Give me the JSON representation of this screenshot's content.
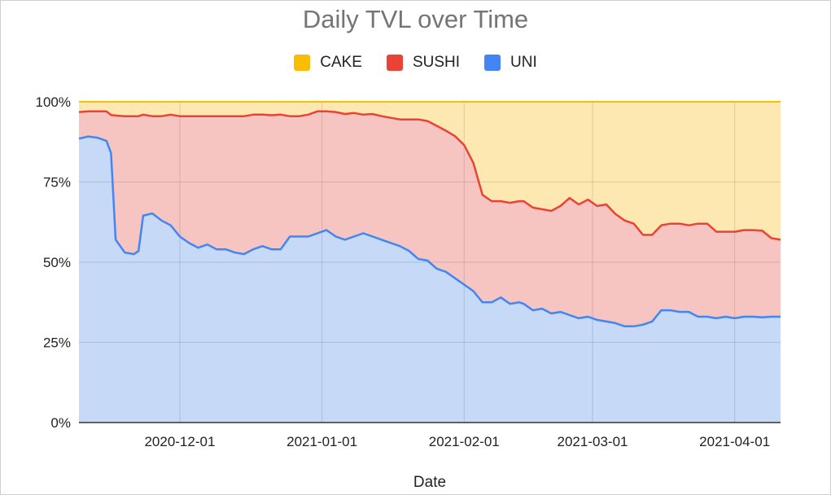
{
  "title": "Daily TVL over Time",
  "legend": [
    {
      "name": "CAKE",
      "color": "#fbbc04"
    },
    {
      "name": "SUSHI",
      "color": "#ea4335"
    },
    {
      "name": "UNI",
      "color": "#4285f4"
    }
  ],
  "chart_data": {
    "type": "area",
    "stacked": "percent",
    "title": "Daily TVL over Time",
    "xlabel": "Date",
    "ylabel": "",
    "ylim": [
      0,
      100
    ],
    "yticks": [
      "0%",
      "25%",
      "50%",
      "75%",
      "100%"
    ],
    "xticks": [
      "2020-12-01",
      "2021-01-01",
      "2021-02-01",
      "2021-03-01",
      "2021-04-01"
    ],
    "xrange": [
      "2020-11-09",
      "2021-04-11"
    ],
    "grid": true,
    "legend_position": "top",
    "x": [
      "2020-11-09",
      "2020-11-11",
      "2020-11-13",
      "2020-11-15",
      "2020-11-16",
      "2020-11-17",
      "2020-11-19",
      "2020-11-21",
      "2020-11-22",
      "2020-11-23",
      "2020-11-25",
      "2020-11-27",
      "2020-11-29",
      "2020-12-01",
      "2020-12-03",
      "2020-12-05",
      "2020-12-07",
      "2020-12-09",
      "2020-12-11",
      "2020-12-13",
      "2020-12-15",
      "2020-12-17",
      "2020-12-19",
      "2020-12-21",
      "2020-12-23",
      "2020-12-25",
      "2020-12-27",
      "2020-12-29",
      "2020-12-31",
      "2021-01-02",
      "2021-01-04",
      "2021-01-06",
      "2021-01-08",
      "2021-01-10",
      "2021-01-12",
      "2021-01-14",
      "2021-01-16",
      "2021-01-18",
      "2021-01-20",
      "2021-01-22",
      "2021-01-24",
      "2021-01-26",
      "2021-01-28",
      "2021-01-30",
      "2021-02-01",
      "2021-02-03",
      "2021-02-05",
      "2021-02-07",
      "2021-02-09",
      "2021-02-11",
      "2021-02-13",
      "2021-02-14",
      "2021-02-16",
      "2021-02-18",
      "2021-02-20",
      "2021-02-22",
      "2021-02-24",
      "2021-02-26",
      "2021-02-28",
      "2021-03-02",
      "2021-03-04",
      "2021-03-06",
      "2021-03-08",
      "2021-03-10",
      "2021-03-12",
      "2021-03-14",
      "2021-03-16",
      "2021-03-18",
      "2021-03-20",
      "2021-03-22",
      "2021-03-24",
      "2021-03-26",
      "2021-03-28",
      "2021-03-30",
      "2021-04-01",
      "2021-04-03",
      "2021-04-05",
      "2021-04-07",
      "2021-04-09",
      "2021-04-11"
    ],
    "series": [
      {
        "name": "UNI",
        "color": "#4285f4",
        "fill": "#c6d9f7",
        "values": [
          88.5,
          89.2,
          88.8,
          87.8,
          84,
          57,
          53,
          52.5,
          53.5,
          64.5,
          65.2,
          63,
          61.5,
          58,
          56,
          54.5,
          55.5,
          54,
          54,
          53,
          52.5,
          54,
          55,
          54,
          54,
          58,
          58,
          58,
          59,
          60,
          58,
          57,
          58,
          59,
          58,
          57,
          56,
          55,
          53.5,
          51,
          50.5,
          48,
          47,
          45,
          43,
          41,
          37.5,
          37.5,
          39,
          37,
          37.5,
          37,
          35,
          35.5,
          34,
          34.5,
          33.5,
          32.5,
          33,
          32,
          31.5,
          31,
          30,
          30,
          30.5,
          31.5,
          35,
          35,
          34.5,
          34.5,
          33,
          33,
          32.5,
          33,
          32.5,
          33,
          33,
          32.8,
          33,
          33
        ]
      },
      {
        "name": "SUSHI",
        "color": "#ea4335",
        "fill": "#f6c5c2",
        "values": [
          8.3,
          7.8,
          8.2,
          9.2,
          11.9,
          38.7,
          42.5,
          43,
          42,
          31.5,
          30.3,
          32.5,
          34.5,
          37.5,
          39.5,
          41,
          40,
          41.5,
          41.5,
          42.5,
          43,
          42,
          41,
          41.8,
          42,
          37.5,
          37.5,
          38,
          38,
          37,
          38.8,
          39.2,
          38.5,
          37,
          38.2,
          38.5,
          39,
          39.5,
          41,
          43.5,
          43.5,
          44.5,
          44,
          44.3,
          43.5,
          40,
          33.5,
          31.5,
          30,
          31.5,
          31.5,
          32,
          32,
          31,
          32,
          33,
          36.5,
          35.5,
          36.5,
          35.5,
          36.5,
          34,
          33,
          32,
          28,
          27,
          26.5,
          27,
          27.5,
          27,
          29,
          29,
          27,
          26.5,
          27,
          27,
          27,
          27,
          24.5,
          24
        ]
      },
      {
        "name": "CAKE",
        "color": "#fbbc04",
        "fill": "#fde8b1",
        "values": [
          3.2,
          3.0,
          3.0,
          3.0,
          4.1,
          4.3,
          4.5,
          4.5,
          4.5,
          4.0,
          4.5,
          4.5,
          4.0,
          4.5,
          4.5,
          4.5,
          4.5,
          4.5,
          4.5,
          4.5,
          4.5,
          4.0,
          4.0,
          4.2,
          4.0,
          4.5,
          4.5,
          4.0,
          3.0,
          3.0,
          3.2,
          3.8,
          3.5,
          4.0,
          3.8,
          4.5,
          5.0,
          5.5,
          5.5,
          5.5,
          6.0,
          7.5,
          9.0,
          10.7,
          13.5,
          19.0,
          29.0,
          31.0,
          31.0,
          31.5,
          31.0,
          31.0,
          33.0,
          33.5,
          34.0,
          32.5,
          30.0,
          32.0,
          30.5,
          32.5,
          32.0,
          35.0,
          37.0,
          38.0,
          41.5,
          41.5,
          38.5,
          38.0,
          38.0,
          38.5,
          38.0,
          38.0,
          40.5,
          40.5,
          40.5,
          40.0,
          40.0,
          40.2,
          42.5,
          43.0
        ]
      }
    ]
  }
}
